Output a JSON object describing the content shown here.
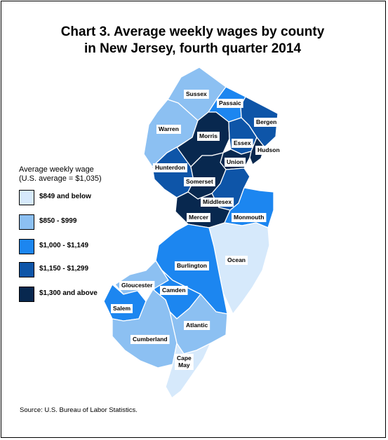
{
  "title_line1": "Chart 3. Average weekly wages by county",
  "title_line2": "in New Jersey, fourth quarter 2014",
  "legend": {
    "title_line1": "Average weekly wage",
    "title_line2": "(U.S. average = $1,035)",
    "items": [
      {
        "label": "$849 and below",
        "color": "#d6e9fb"
      },
      {
        "label": "$850 - $999",
        "color": "#8cc0f2"
      },
      {
        "label": "$1,000 - $1,149",
        "color": "#1c86f0"
      },
      {
        "label": "$1,150 - $1,299",
        "color": "#0e55a8"
      },
      {
        "label": "$1,300 and above",
        "color": "#08284f"
      }
    ]
  },
  "counties": [
    {
      "name": "Sussex",
      "class": 1
    },
    {
      "name": "Passaic",
      "class": 2
    },
    {
      "name": "Bergen",
      "class": 3
    },
    {
      "name": "Warren",
      "class": 1
    },
    {
      "name": "Morris",
      "class": 4
    },
    {
      "name": "Essex",
      "class": 3
    },
    {
      "name": "Hudson",
      "class": 4
    },
    {
      "name": "Hunterdon",
      "class": 3
    },
    {
      "name": "Union",
      "class": 4
    },
    {
      "name": "Somerset",
      "class": 4
    },
    {
      "name": "Middlesex",
      "class": 3
    },
    {
      "name": "Mercer",
      "class": 4
    },
    {
      "name": "Monmouth",
      "class": 2
    },
    {
      "name": "Ocean",
      "class": 0
    },
    {
      "name": "Burlington",
      "class": 2
    },
    {
      "name": "Gloucester",
      "class": 1
    },
    {
      "name": "Camden",
      "class": 2
    },
    {
      "name": "Salem",
      "class": 2
    },
    {
      "name": "Atlantic",
      "class": 1
    },
    {
      "name": "Cumberland",
      "class": 1
    },
    {
      "name": "Cape May",
      "class": 0
    }
  ],
  "source": "Source: U.S. Bureau of Labor Statistics."
}
